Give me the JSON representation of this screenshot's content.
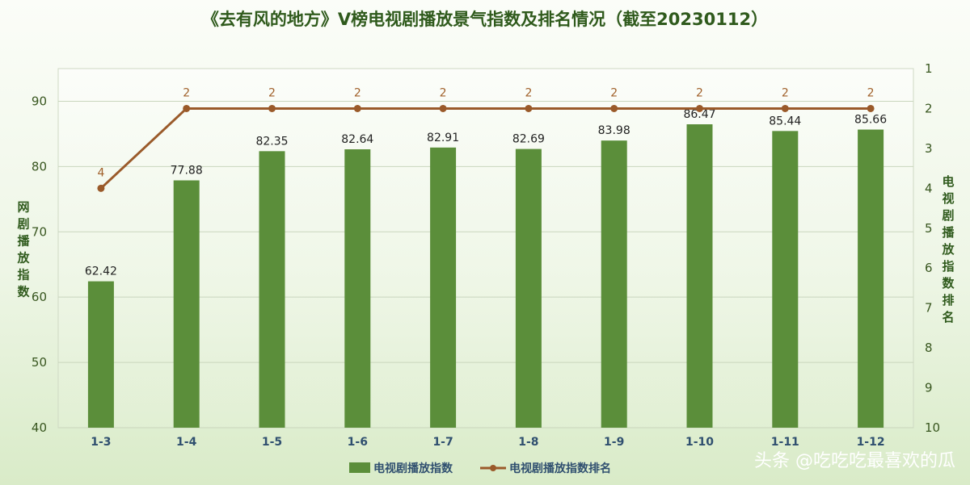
{
  "title": "《去有风的地方》V榜电视剧播放景气指数及排名情况（截至20230112）",
  "watermark": "头条 @吃吃吃最喜欢的瓜",
  "colors": {
    "bar": "#5b8e3a",
    "line": "#9a5a2a",
    "label_rank": "#a0602a",
    "title": "#2f5a1c"
  },
  "chart_data": {
    "type": "bar",
    "title": "《去有风的地方》V榜电视剧播放景气指数及排名情况（截至20230112）",
    "categories": [
      "1-3",
      "1-4",
      "1-5",
      "1-6",
      "1-7",
      "1-8",
      "1-9",
      "1-10",
      "1-11",
      "1-12"
    ],
    "series": [
      {
        "name": "电视剧播放指数",
        "type": "bar",
        "axis": "left",
        "values": [
          62.42,
          77.88,
          82.35,
          82.64,
          82.91,
          82.69,
          83.98,
          86.47,
          85.44,
          85.66
        ],
        "labels": [
          "62.42",
          "77.88",
          "82.35",
          "82.64",
          "82.91",
          "82.69",
          "83.98",
          "86.47",
          "85.44",
          "85.66"
        ]
      },
      {
        "name": "电视剧播放指数排名",
        "type": "line",
        "axis": "right",
        "values": [
          4,
          2,
          2,
          2,
          2,
          2,
          2,
          2,
          2,
          2
        ],
        "labels": [
          "4",
          "2",
          "2",
          "2",
          "2",
          "2",
          "2",
          "2",
          "2",
          "2"
        ]
      }
    ],
    "ylabel": "网剧播放指数",
    "ylim": [
      40,
      95
    ],
    "yticks": [
      "40",
      "50",
      "60",
      "70",
      "80",
      "90"
    ],
    "y2label": "电视剧播放指数排名",
    "y2lim": [
      1,
      10
    ],
    "y2_reversed": true,
    "y2ticks": [
      "1",
      "2",
      "3",
      "4",
      "5",
      "6",
      "7",
      "8",
      "9",
      "10"
    ],
    "grid": true,
    "legend_position": "bottom"
  }
}
